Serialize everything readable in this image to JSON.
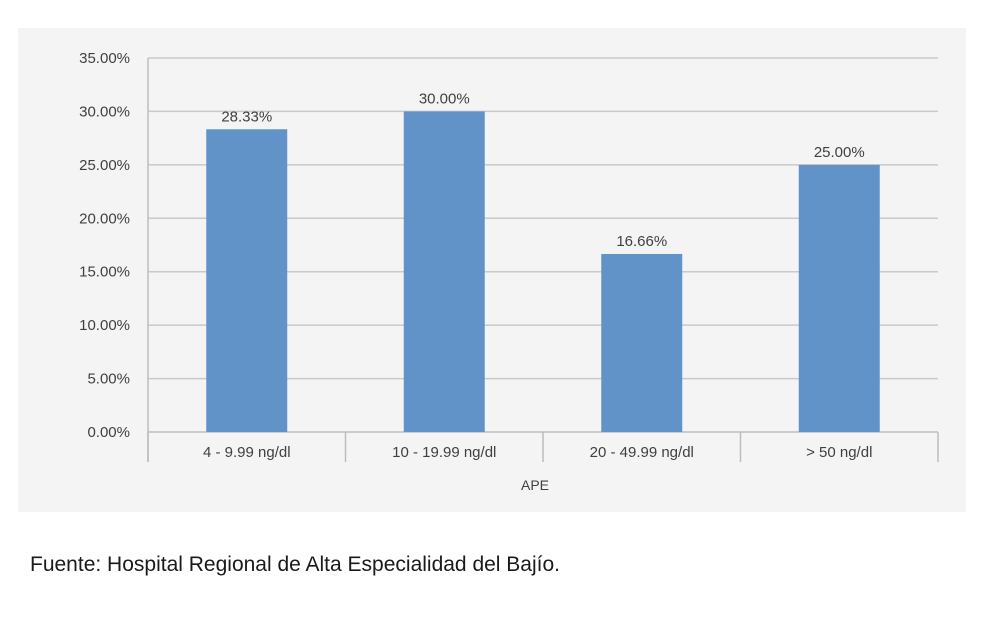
{
  "chart_data": {
    "type": "bar",
    "categories": [
      "4 - 9.99 ng/dl",
      "10 - 19.99 ng/dl",
      "20 - 49.99 ng/dl",
      "> 50 ng/dl"
    ],
    "values": [
      28.33,
      30.0,
      16.66,
      25.0
    ],
    "data_labels": [
      "28.33%",
      "30.00%",
      "16.66%",
      "25.00%"
    ],
    "xlabel": "APE",
    "ylabel": "",
    "ylim": [
      0,
      35
    ],
    "yticks": [
      0,
      5,
      10,
      15,
      20,
      25,
      30,
      35
    ],
    "ytick_labels": [
      "0.00%",
      "5.00%",
      "10.00%",
      "15.00%",
      "20.00%",
      "25.00%",
      "30.00%",
      "35.00%"
    ],
    "grid": true,
    "legend": "none",
    "bar_color": "#6192c8"
  },
  "source_note": "Fuente: Hospital Regional de Alta Especialidad del Bajío."
}
